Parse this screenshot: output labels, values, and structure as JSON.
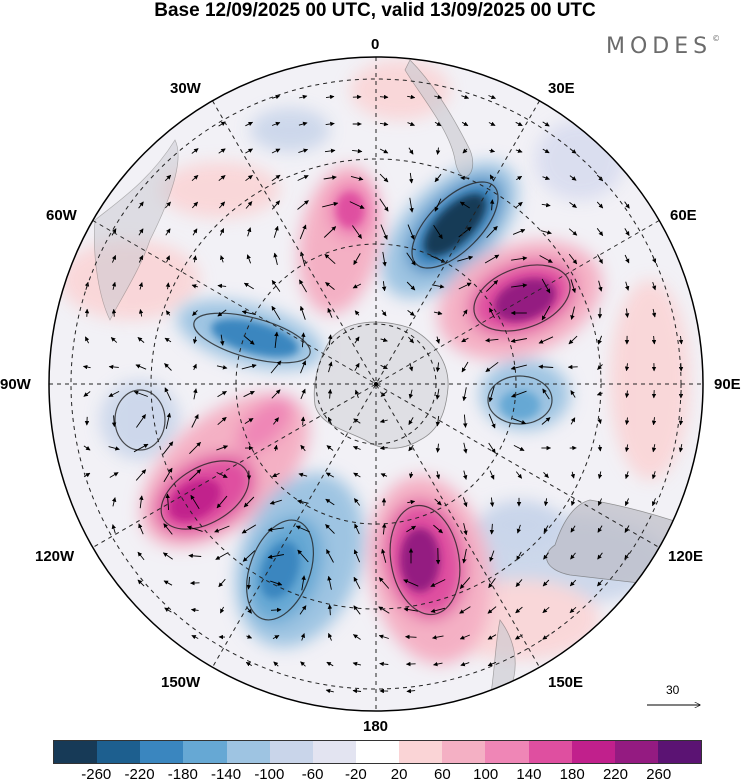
{
  "title": "Base 12/09/2025 00 UTC, valid 13/09/2025 00 UTC",
  "brand": {
    "name": "MODES",
    "mark": "©"
  },
  "map": {
    "projection": "South Polar Stereographic",
    "longitude_labels": [
      "0",
      "30E",
      "60E",
      "90E",
      "120E",
      "150E",
      "180",
      "150W",
      "120W",
      "90W",
      "60W",
      "30W"
    ],
    "field": "anomaly",
    "wind_vectors": "arrows"
  },
  "colorbar": {
    "colors": [
      "#173a57",
      "#1d5f8f",
      "#3a86bf",
      "#66a8d4",
      "#9ec4e2",
      "#c9d5ea",
      "#e3e4f1",
      "#ffffff",
      "#fad4d6",
      "#f4b0c4",
      "#ef86b6",
      "#df4fa0",
      "#c1208c",
      "#941b81",
      "#5b1373"
    ],
    "tick_labels": [
      "-260",
      "-220",
      "-180",
      "-140",
      "-100",
      "-60",
      "-20",
      "20",
      "60",
      "100",
      "140",
      "180",
      "220",
      "260"
    ]
  },
  "reference_vector": {
    "label": "30"
  }
}
